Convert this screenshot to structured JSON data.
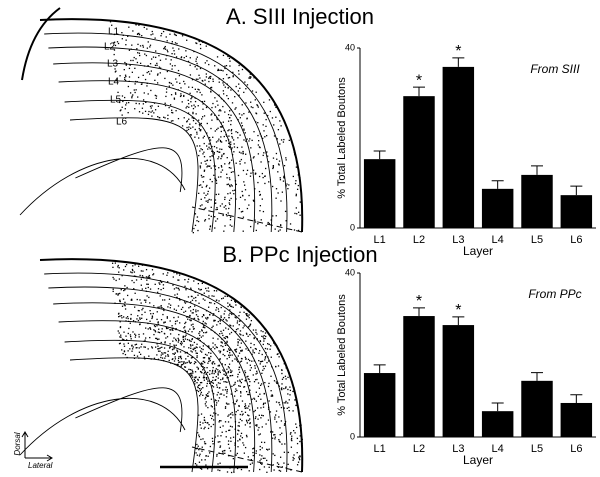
{
  "chart_data": [
    {
      "type": "bar",
      "title": "A.  SIII  Injection",
      "annotation": "From SIII",
      "categories": [
        "L1",
        "L2",
        "L3",
        "L4",
        "L5",
        "L6"
      ],
      "values": [
        15.3,
        29.3,
        35.8,
        8.7,
        11.8,
        7.3
      ],
      "errors": [
        1.8,
        2,
        2,
        1.8,
        2,
        2
      ],
      "significance": [
        null,
        "*",
        "*",
        null,
        null,
        null
      ],
      "color": "#000000",
      "x_label": "Layer",
      "y_label": "% Total Labeled Boutons",
      "ylim": [
        0,
        40
      ],
      "yticks": [
        0,
        40
      ]
    },
    {
      "type": "bar",
      "title": "B.  PPc Injection",
      "annotation": "From PPc",
      "categories": [
        "L1",
        "L2",
        "L3",
        "L4",
        "L5",
        "L6"
      ],
      "values": [
        15.6,
        29.5,
        27.3,
        6.3,
        13.7,
        8.3
      ],
      "errors": [
        2,
        2,
        2,
        2,
        2,
        2
      ],
      "significance": [
        null,
        "*",
        "*",
        null,
        null,
        null
      ],
      "color": "#000000",
      "x_label": "Layer",
      "y_label": "% Total Labeled Boutons",
      "ylim": [
        0,
        40
      ],
      "yticks": [
        0,
        40
      ]
    }
  ],
  "diagram": {
    "layers": [
      "L1",
      "L2",
      "L3",
      "L4",
      "L5",
      "L6"
    ],
    "axis_up": "Dorsal",
    "axis_right": "Lateral"
  }
}
